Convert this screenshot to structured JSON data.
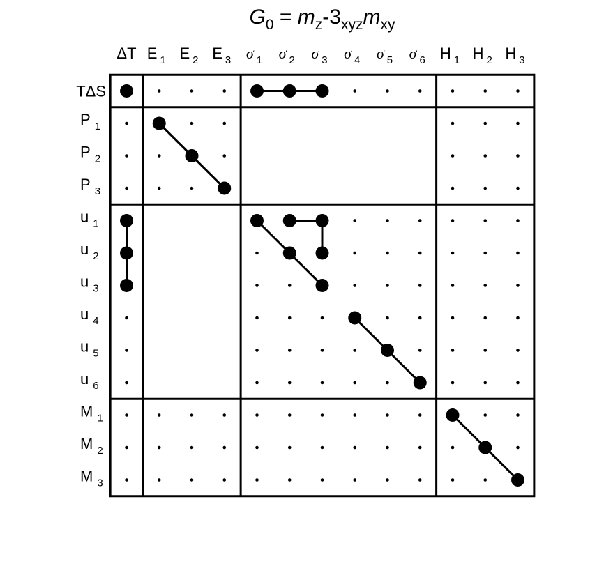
{
  "title": {
    "symbol": "G",
    "symbol_sub": "0",
    "equals": " = ",
    "m1": "m",
    "m1_sub": "z",
    "dash3": "-3",
    "mid_sub": "xyz",
    "m2": "m",
    "m2_sub": "xy"
  },
  "columns": [
    {
      "base": "ΔT",
      "sub": "",
      "greek": false
    },
    {
      "base": "E",
      "sub": "1",
      "greek": false
    },
    {
      "base": "E",
      "sub": "2",
      "greek": false
    },
    {
      "base": "E",
      "sub": "3",
      "greek": false
    },
    {
      "base": "σ",
      "sub": "1",
      "greek": true
    },
    {
      "base": "σ",
      "sub": "2",
      "greek": true
    },
    {
      "base": "σ",
      "sub": "3",
      "greek": true
    },
    {
      "base": "σ",
      "sub": "4",
      "greek": true
    },
    {
      "base": "σ",
      "sub": "5",
      "greek": true
    },
    {
      "base": "σ",
      "sub": "6",
      "greek": true
    },
    {
      "base": "H",
      "sub": "1",
      "greek": false
    },
    {
      "base": "H",
      "sub": "2",
      "greek": false
    },
    {
      "base": "H",
      "sub": "3",
      "greek": false
    }
  ],
  "rows": [
    {
      "base": "TΔS",
      "sub": ""
    },
    {
      "base": "P",
      "sub": "1"
    },
    {
      "base": "P",
      "sub": "2"
    },
    {
      "base": "P",
      "sub": "3"
    },
    {
      "base": "u",
      "sub": "1"
    },
    {
      "base": "u",
      "sub": "2"
    },
    {
      "base": "u",
      "sub": "3"
    },
    {
      "base": "u",
      "sub": "4"
    },
    {
      "base": "u",
      "sub": "5"
    },
    {
      "base": "u",
      "sub": "6"
    },
    {
      "base": "M",
      "sub": "1"
    },
    {
      "base": "M",
      "sub": "2"
    },
    {
      "base": "M",
      "sub": "3"
    }
  ],
  "column_groups": [
    [
      0,
      0
    ],
    [
      1,
      3
    ],
    [
      4,
      9
    ],
    [
      10,
      12
    ]
  ],
  "row_groups": [
    [
      0,
      0
    ],
    [
      1,
      3
    ],
    [
      4,
      9
    ],
    [
      10,
      12
    ]
  ],
  "zero_blocks": [
    {
      "rows": [
        1,
        3
      ],
      "cols": [
        4,
        9
      ]
    },
    {
      "rows": [
        4,
        9
      ],
      "cols": [
        1,
        3
      ]
    }
  ],
  "nonzero": [
    [
      0,
      0
    ],
    [
      0,
      4
    ],
    [
      0,
      5
    ],
    [
      0,
      6
    ],
    [
      1,
      1
    ],
    [
      2,
      2
    ],
    [
      3,
      3
    ],
    [
      4,
      0
    ],
    [
      5,
      0
    ],
    [
      6,
      0
    ],
    [
      4,
      4
    ],
    [
      4,
      5
    ],
    [
      4,
      6
    ],
    [
      5,
      5
    ],
    [
      5,
      6
    ],
    [
      6,
      6
    ],
    [
      7,
      7
    ],
    [
      8,
      8
    ],
    [
      9,
      9
    ],
    [
      10,
      10
    ],
    [
      11,
      11
    ],
    [
      12,
      12
    ]
  ],
  "links": [
    [
      [
        0,
        4
      ],
      [
        0,
        5
      ]
    ],
    [
      [
        0,
        5
      ],
      [
        0,
        6
      ]
    ],
    [
      [
        1,
        1
      ],
      [
        2,
        2
      ]
    ],
    [
      [
        2,
        2
      ],
      [
        3,
        3
      ]
    ],
    [
      [
        4,
        0
      ],
      [
        5,
        0
      ]
    ],
    [
      [
        5,
        0
      ],
      [
        6,
        0
      ]
    ],
    [
      [
        4,
        4
      ],
      [
        5,
        5
      ]
    ],
    [
      [
        5,
        5
      ],
      [
        6,
        6
      ]
    ],
    [
      [
        4,
        5
      ],
      [
        4,
        6
      ]
    ],
    [
      [
        4,
        6
      ],
      [
        5,
        6
      ]
    ],
    [
      [
        7,
        7
      ],
      [
        8,
        8
      ]
    ],
    [
      [
        8,
        8
      ],
      [
        9,
        9
      ]
    ],
    [
      [
        10,
        10
      ],
      [
        11,
        11
      ]
    ],
    [
      [
        11,
        11
      ],
      [
        12,
        12
      ]
    ]
  ]
}
